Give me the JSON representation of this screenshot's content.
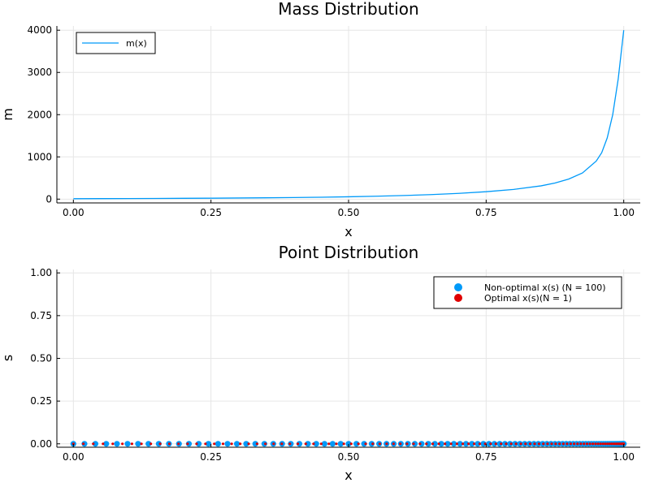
{
  "chart_data": [
    {
      "type": "line",
      "title": "Mass Distribution",
      "xlabel": "x",
      "ylabel": "m",
      "xlim": [
        -0.03,
        1.03
      ],
      "ylim": [
        -90,
        4100
      ],
      "xticks": [
        0,
        0.25,
        0.5,
        0.75,
        1.0
      ],
      "xtick_labels": [
        "0.00",
        "0.25",
        "0.50",
        "0.75",
        "1.00"
      ],
      "yticks": [
        0,
        1000,
        2000,
        3000,
        4000
      ],
      "ytick_labels": [
        "0",
        "1000",
        "2000",
        "3000",
        "4000"
      ],
      "grid": true,
      "legend": "top-left",
      "series": [
        {
          "name": "m(x)",
          "color": "#009af9",
          "x": [
            0,
            0.05,
            0.1,
            0.15,
            0.2,
            0.25,
            0.3,
            0.35,
            0.4,
            0.45,
            0.5,
            0.55,
            0.6,
            0.65,
            0.7,
            0.75,
            0.8,
            0.85,
            0.875,
            0.9,
            0.925,
            0.95,
            0.96,
            0.97,
            0.98,
            0.99,
            1.0
          ],
          "y": [
            10,
            12,
            14,
            16,
            19,
            22,
            26,
            31,
            37,
            45,
            55,
            68,
            85,
            107,
            136,
            175,
            230,
            315,
            380,
            475,
            620,
            900,
            1100,
            1450,
            2000,
            2850,
            4000
          ]
        }
      ]
    },
    {
      "type": "scatter",
      "title": "Point Distribution",
      "xlabel": "x",
      "ylabel": "s",
      "xlim": [
        -0.03,
        1.03
      ],
      "ylim": [
        -0.02,
        1.02
      ],
      "xticks": [
        0,
        0.25,
        0.5,
        0.75,
        1.0
      ],
      "xtick_labels": [
        "0.00",
        "0.25",
        "0.50",
        "0.75",
        "1.00"
      ],
      "yticks": [
        0,
        0.25,
        0.5,
        0.75,
        1.0
      ],
      "ytick_labels": [
        "0.00",
        "0.25",
        "0.50",
        "0.75",
        "1.00"
      ],
      "grid": true,
      "legend": "top-right",
      "series": [
        {
          "name": "Non-optimal x(s) (N = 100)",
          "color": "#009af9",
          "n": 100,
          "y": 0
        },
        {
          "name": "Optimal x(s)(N = 1)",
          "color": "#e00000",
          "n": 100,
          "y": 0
        }
      ]
    }
  ]
}
